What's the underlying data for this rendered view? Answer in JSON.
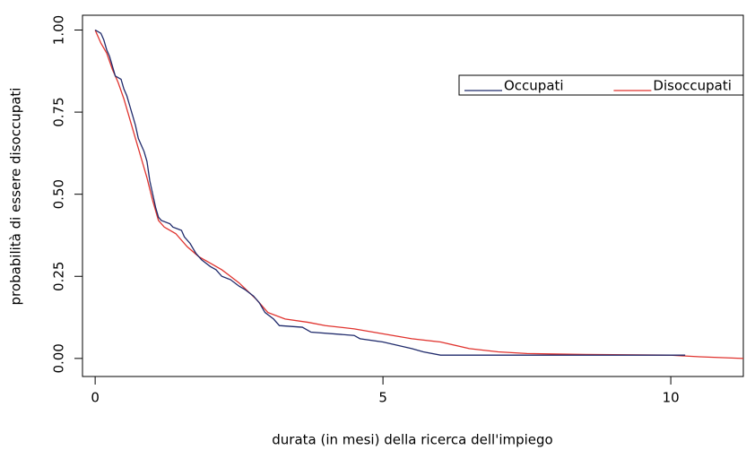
{
  "chart_data": {
    "type": "line",
    "x_label": "durata (in mesi) della ricerca dell'impiego",
    "y_label": "probabilità di essere disoccupati",
    "xlim": [
      -0.22,
      11.26
    ],
    "ylim": [
      -0.055,
      1.045
    ],
    "xticks": [
      0,
      5,
      10
    ],
    "yticks": [
      {
        "value": 0,
        "label": "0.00"
      },
      {
        "value": 0.25,
        "label": "0.25"
      },
      {
        "value": 0.5,
        "label": "0.50"
      },
      {
        "value": 0.75,
        "label": "0.75"
      },
      {
        "value": 1,
        "label": "1.00"
      }
    ],
    "legend_position": "upper-right",
    "series": [
      {
        "name": "Occupati",
        "color": "#1f2a6b",
        "x": [
          0,
          0.1,
          0.15,
          0.2,
          0.25,
          0.3,
          0.35,
          0.45,
          0.5,
          0.55,
          0.6,
          0.65,
          0.7,
          0.75,
          0.8,
          0.85,
          0.9,
          0.95,
          1.0,
          1.05,
          1.1,
          1.15,
          1.3,
          1.35,
          1.5,
          1.55,
          1.65,
          1.75,
          1.85,
          2.0,
          2.1,
          2.2,
          2.35,
          2.5,
          2.6,
          2.75,
          2.85,
          2.95,
          3.1,
          3.2,
          3.6,
          3.75,
          4.5,
          4.6,
          5.0,
          5.5,
          5.7,
          6.0,
          10.25
        ],
        "values": [
          1.0,
          0.99,
          0.97,
          0.94,
          0.92,
          0.89,
          0.86,
          0.85,
          0.82,
          0.8,
          0.77,
          0.74,
          0.71,
          0.67,
          0.65,
          0.63,
          0.6,
          0.54,
          0.5,
          0.46,
          0.43,
          0.42,
          0.41,
          0.4,
          0.39,
          0.37,
          0.35,
          0.32,
          0.3,
          0.28,
          0.27,
          0.25,
          0.24,
          0.22,
          0.21,
          0.19,
          0.17,
          0.14,
          0.12,
          0.1,
          0.095,
          0.08,
          0.07,
          0.06,
          0.05,
          0.03,
          0.02,
          0.01,
          0.01
        ]
      },
      {
        "name": "Disoccupati",
        "color": "#e0332e",
        "x": [
          0,
          0.1,
          0.2,
          0.3,
          0.4,
          0.5,
          0.6,
          0.7,
          0.8,
          0.9,
          1.0,
          1.1,
          1.2,
          1.4,
          1.6,
          1.8,
          2.0,
          2.2,
          2.5,
          2.8,
          3.0,
          3.3,
          3.7,
          4.0,
          4.5,
          5.0,
          5.5,
          6.0,
          6.5,
          7.0,
          7.5,
          8.5,
          10.0,
          10.5,
          11.26
        ],
        "values": [
          1.0,
          0.96,
          0.93,
          0.88,
          0.84,
          0.79,
          0.73,
          0.67,
          0.61,
          0.55,
          0.48,
          0.42,
          0.4,
          0.38,
          0.34,
          0.31,
          0.29,
          0.27,
          0.23,
          0.18,
          0.14,
          0.12,
          0.11,
          0.1,
          0.09,
          0.075,
          0.06,
          0.05,
          0.03,
          0.02,
          0.015,
          0.012,
          0.01,
          0.005,
          0.0
        ]
      }
    ]
  }
}
